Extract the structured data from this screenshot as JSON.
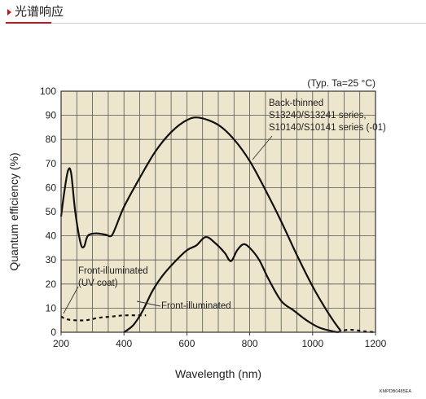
{
  "header": {
    "title": "光谱响应"
  },
  "chart_data": {
    "type": "line",
    "title": "",
    "condition_label": "(Typ. Ta=25 °C)",
    "xlabel": "Wavelength (nm)",
    "ylabel": "Quantum efficiency (%)",
    "xlim": [
      200,
      1200
    ],
    "ylim": [
      0,
      100
    ],
    "x_ticks": [
      200,
      400,
      600,
      800,
      1000,
      1200
    ],
    "y_ticks": [
      0,
      10,
      20,
      30,
      40,
      50,
      60,
      70,
      80,
      90,
      100
    ],
    "grid": true,
    "background": "#ede6cc",
    "line_color": "#111111",
    "footnote": "KMPDB0485EA",
    "annotations": [
      {
        "lines": [
          "Back-thinned",
          "S13240/S13241 series,",
          "S10140/S10141 series (-01)"
        ],
        "series": "back-thinned"
      },
      {
        "lines": [
          "Front-illuminated",
          "(UV coat)"
        ],
        "series": "front-uv"
      },
      {
        "lines": [
          "Front-illuminated"
        ],
        "series": "front"
      }
    ],
    "series": [
      {
        "id": "back-thinned",
        "style": "solid",
        "points": [
          [
            200,
            48
          ],
          [
            210,
            58
          ],
          [
            222,
            67
          ],
          [
            232,
            66
          ],
          [
            245,
            50
          ],
          [
            262,
            37
          ],
          [
            273,
            35.5
          ],
          [
            285,
            40
          ],
          [
            310,
            41
          ],
          [
            340,
            40.5
          ],
          [
            360,
            40
          ],
          [
            375,
            44
          ],
          [
            400,
            52
          ],
          [
            450,
            64
          ],
          [
            500,
            75
          ],
          [
            550,
            83
          ],
          [
            600,
            88
          ],
          [
            640,
            89
          ],
          [
            700,
            86
          ],
          [
            750,
            80
          ],
          [
            800,
            71
          ],
          [
            850,
            59
          ],
          [
            900,
            46
          ],
          [
            950,
            32
          ],
          [
            1000,
            19
          ],
          [
            1040,
            10
          ],
          [
            1070,
            4
          ],
          [
            1090,
            0.5
          ]
        ]
      },
      {
        "id": "front-uv",
        "style": "dashed",
        "points": [
          [
            200,
            6.5
          ],
          [
            215,
            5.5
          ],
          [
            240,
            5
          ],
          [
            280,
            5
          ],
          [
            320,
            6
          ],
          [
            360,
            6.5
          ],
          [
            400,
            7
          ],
          [
            440,
            7
          ],
          [
            470,
            7
          ]
        ]
      },
      {
        "id": "front",
        "style": "solid",
        "points": [
          [
            400,
            0
          ],
          [
            430,
            3
          ],
          [
            460,
            9
          ],
          [
            490,
            17
          ],
          [
            520,
            23
          ],
          [
            560,
            29
          ],
          [
            600,
            34
          ],
          [
            630,
            36
          ],
          [
            660,
            39.5
          ],
          [
            690,
            37
          ],
          [
            720,
            33
          ],
          [
            740,
            29.5
          ],
          [
            760,
            34
          ],
          [
            780,
            36.5
          ],
          [
            800,
            35
          ],
          [
            830,
            30
          ],
          [
            860,
            22
          ],
          [
            900,
            13
          ],
          [
            940,
            9
          ],
          [
            980,
            5
          ],
          [
            1020,
            2
          ],
          [
            1060,
            0.5
          ],
          [
            1080,
            0
          ]
        ]
      },
      {
        "id": "front-tail",
        "style": "dashed",
        "points": [
          [
            1080,
            0
          ],
          [
            1110,
            1
          ],
          [
            1140,
            0.8
          ],
          [
            1170,
            0.3
          ],
          [
            1200,
            0
          ]
        ]
      }
    ]
  }
}
